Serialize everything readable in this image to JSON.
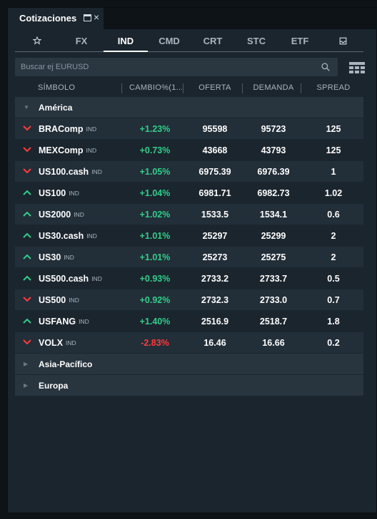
{
  "window": {
    "title": "Cotizaciones"
  },
  "tabs": [
    {
      "label": ""
    },
    {
      "label": "FX"
    },
    {
      "label": "IND"
    },
    {
      "label": "CMD"
    },
    {
      "label": "CRT"
    },
    {
      "label": "STC"
    },
    {
      "label": "ETF"
    },
    {
      "label": ""
    }
  ],
  "search": {
    "placeholder": "Buscar ej EURUSD"
  },
  "columns": {
    "symbol": "SÍMBOLO",
    "change": "CAMBIO%(1...",
    "bid": "OFERTA",
    "ask": "DEMANDA",
    "spread": "SPREAD"
  },
  "groups": {
    "america": "América",
    "asia": "Asia-Pacífico",
    "europe": "Europa"
  },
  "rows": [
    {
      "symbol": "BRAComp",
      "badge": "IND",
      "direction": "down",
      "change": "+1.23%",
      "change_sign": "pos",
      "bid": "95598",
      "ask": "95723",
      "spread": "125"
    },
    {
      "symbol": "MEXComp",
      "badge": "IND",
      "direction": "down",
      "change": "+0.73%",
      "change_sign": "pos",
      "bid": "43668",
      "ask": "43793",
      "spread": "125"
    },
    {
      "symbol": "US100.cash",
      "badge": "IND",
      "direction": "down",
      "change": "+1.05%",
      "change_sign": "pos",
      "bid": "6975.39",
      "ask": "6976.39",
      "spread": "1"
    },
    {
      "symbol": "US100",
      "badge": "IND",
      "direction": "up",
      "change": "+1.04%",
      "change_sign": "pos",
      "bid": "6981.71",
      "ask": "6982.73",
      "spread": "1.02"
    },
    {
      "symbol": "US2000",
      "badge": "IND",
      "direction": "up",
      "change": "+1.02%",
      "change_sign": "pos",
      "bid": "1533.5",
      "ask": "1534.1",
      "spread": "0.6"
    },
    {
      "symbol": "US30.cash",
      "badge": "IND",
      "direction": "up",
      "change": "+1.01%",
      "change_sign": "pos",
      "bid": "25297",
      "ask": "25299",
      "spread": "2"
    },
    {
      "symbol": "US30",
      "badge": "IND",
      "direction": "up",
      "change": "+1.01%",
      "change_sign": "pos",
      "bid": "25273",
      "ask": "25275",
      "spread": "2"
    },
    {
      "symbol": "US500.cash",
      "badge": "IND",
      "direction": "up",
      "change": "+0.93%",
      "change_sign": "pos",
      "bid": "2733.2",
      "ask": "2733.7",
      "spread": "0.5"
    },
    {
      "symbol": "US500",
      "badge": "IND",
      "direction": "down",
      "change": "+0.92%",
      "change_sign": "pos",
      "bid": "2732.3",
      "ask": "2733.0",
      "spread": "0.7"
    },
    {
      "symbol": "USFANG",
      "badge": "IND",
      "direction": "up",
      "change": "+1.40%",
      "change_sign": "pos",
      "bid": "2516.9",
      "ask": "2518.7",
      "spread": "1.8"
    },
    {
      "symbol": "VOLX",
      "badge": "IND",
      "direction": "down",
      "change": "-2.83%",
      "change_sign": "neg",
      "bid": "16.46",
      "ask": "16.66",
      "spread": "0.2"
    }
  ],
  "colors": {
    "up": "#2fcf8a",
    "down": "#ff3b3b",
    "background": "#1b252e"
  },
  "icons": {
    "favorites_tab": "star-icon",
    "inbox_tab": "inbox-icon",
    "search": "search-icon",
    "layout": "grid-view-icon",
    "maximize": "maximize-icon",
    "close": "close-icon"
  }
}
